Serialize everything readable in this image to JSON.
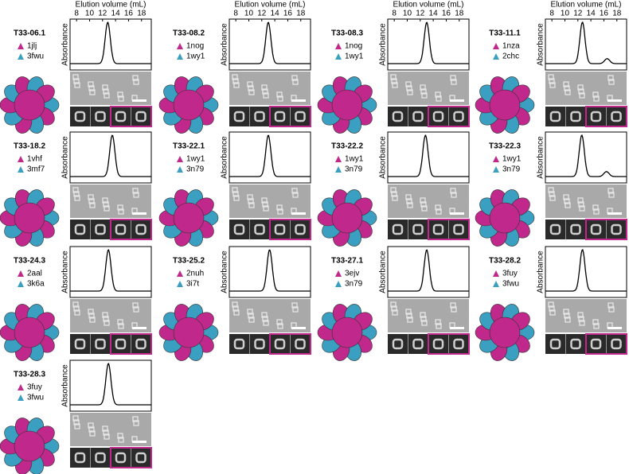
{
  "elution": {
    "label": "Elution volume (mL)",
    "xlim": [
      7,
      19.5
    ],
    "xticks": [
      8,
      10,
      12,
      14,
      16,
      18
    ]
  },
  "y_label": "Absorbance",
  "panels": [
    {
      "name": "T33-06.1",
      "components": [
        "1jlj",
        "3fwu"
      ],
      "peaks": [
        12.8
      ]
    },
    {
      "name": "T33-08.2",
      "components": [
        "1nog",
        "1wy1"
      ],
      "peaks": [
        13.0
      ]
    },
    {
      "name": "T33-08.3",
      "components": [
        "1nog",
        "1wy1"
      ],
      "peaks": [
        13.0
      ]
    },
    {
      "name": "T33-11.1",
      "components": [
        "1nza",
        "2chc"
      ],
      "peaks": [
        12.7,
        16.5
      ]
    },
    {
      "name": "T33-18.2",
      "components": [
        "1vhf",
        "3mf7"
      ],
      "peaks": [
        13.5
      ]
    },
    {
      "name": "T33-22.1",
      "components": [
        "1wy1",
        "3n79"
      ],
      "peaks": [
        13.0
      ]
    },
    {
      "name": "T33-22.2",
      "components": [
        "1wy1",
        "3n79"
      ],
      "peaks": [
        12.8
      ]
    },
    {
      "name": "T33-22.3",
      "components": [
        "1wy1",
        "3n79"
      ],
      "peaks": [
        12.6,
        16.4
      ]
    },
    {
      "name": "T33-24.3",
      "components": [
        "2aal",
        "3k6a"
      ],
      "peaks": [
        12.9
      ]
    },
    {
      "name": "T33-25.2",
      "components": [
        "2nuh",
        "3i7t"
      ],
      "peaks": [
        13.2
      ]
    },
    {
      "name": "T33-27.1",
      "components": [
        "3ejv",
        "3n79"
      ],
      "peaks": [
        13.0
      ]
    },
    {
      "name": "T33-28.2",
      "components": [
        "3fuy",
        "3fwu"
      ],
      "peaks": [
        12.7
      ]
    },
    {
      "name": "T33-28.3",
      "components": [
        "3fuy",
        "3fwu"
      ],
      "peaks": [
        12.9
      ]
    }
  ]
}
